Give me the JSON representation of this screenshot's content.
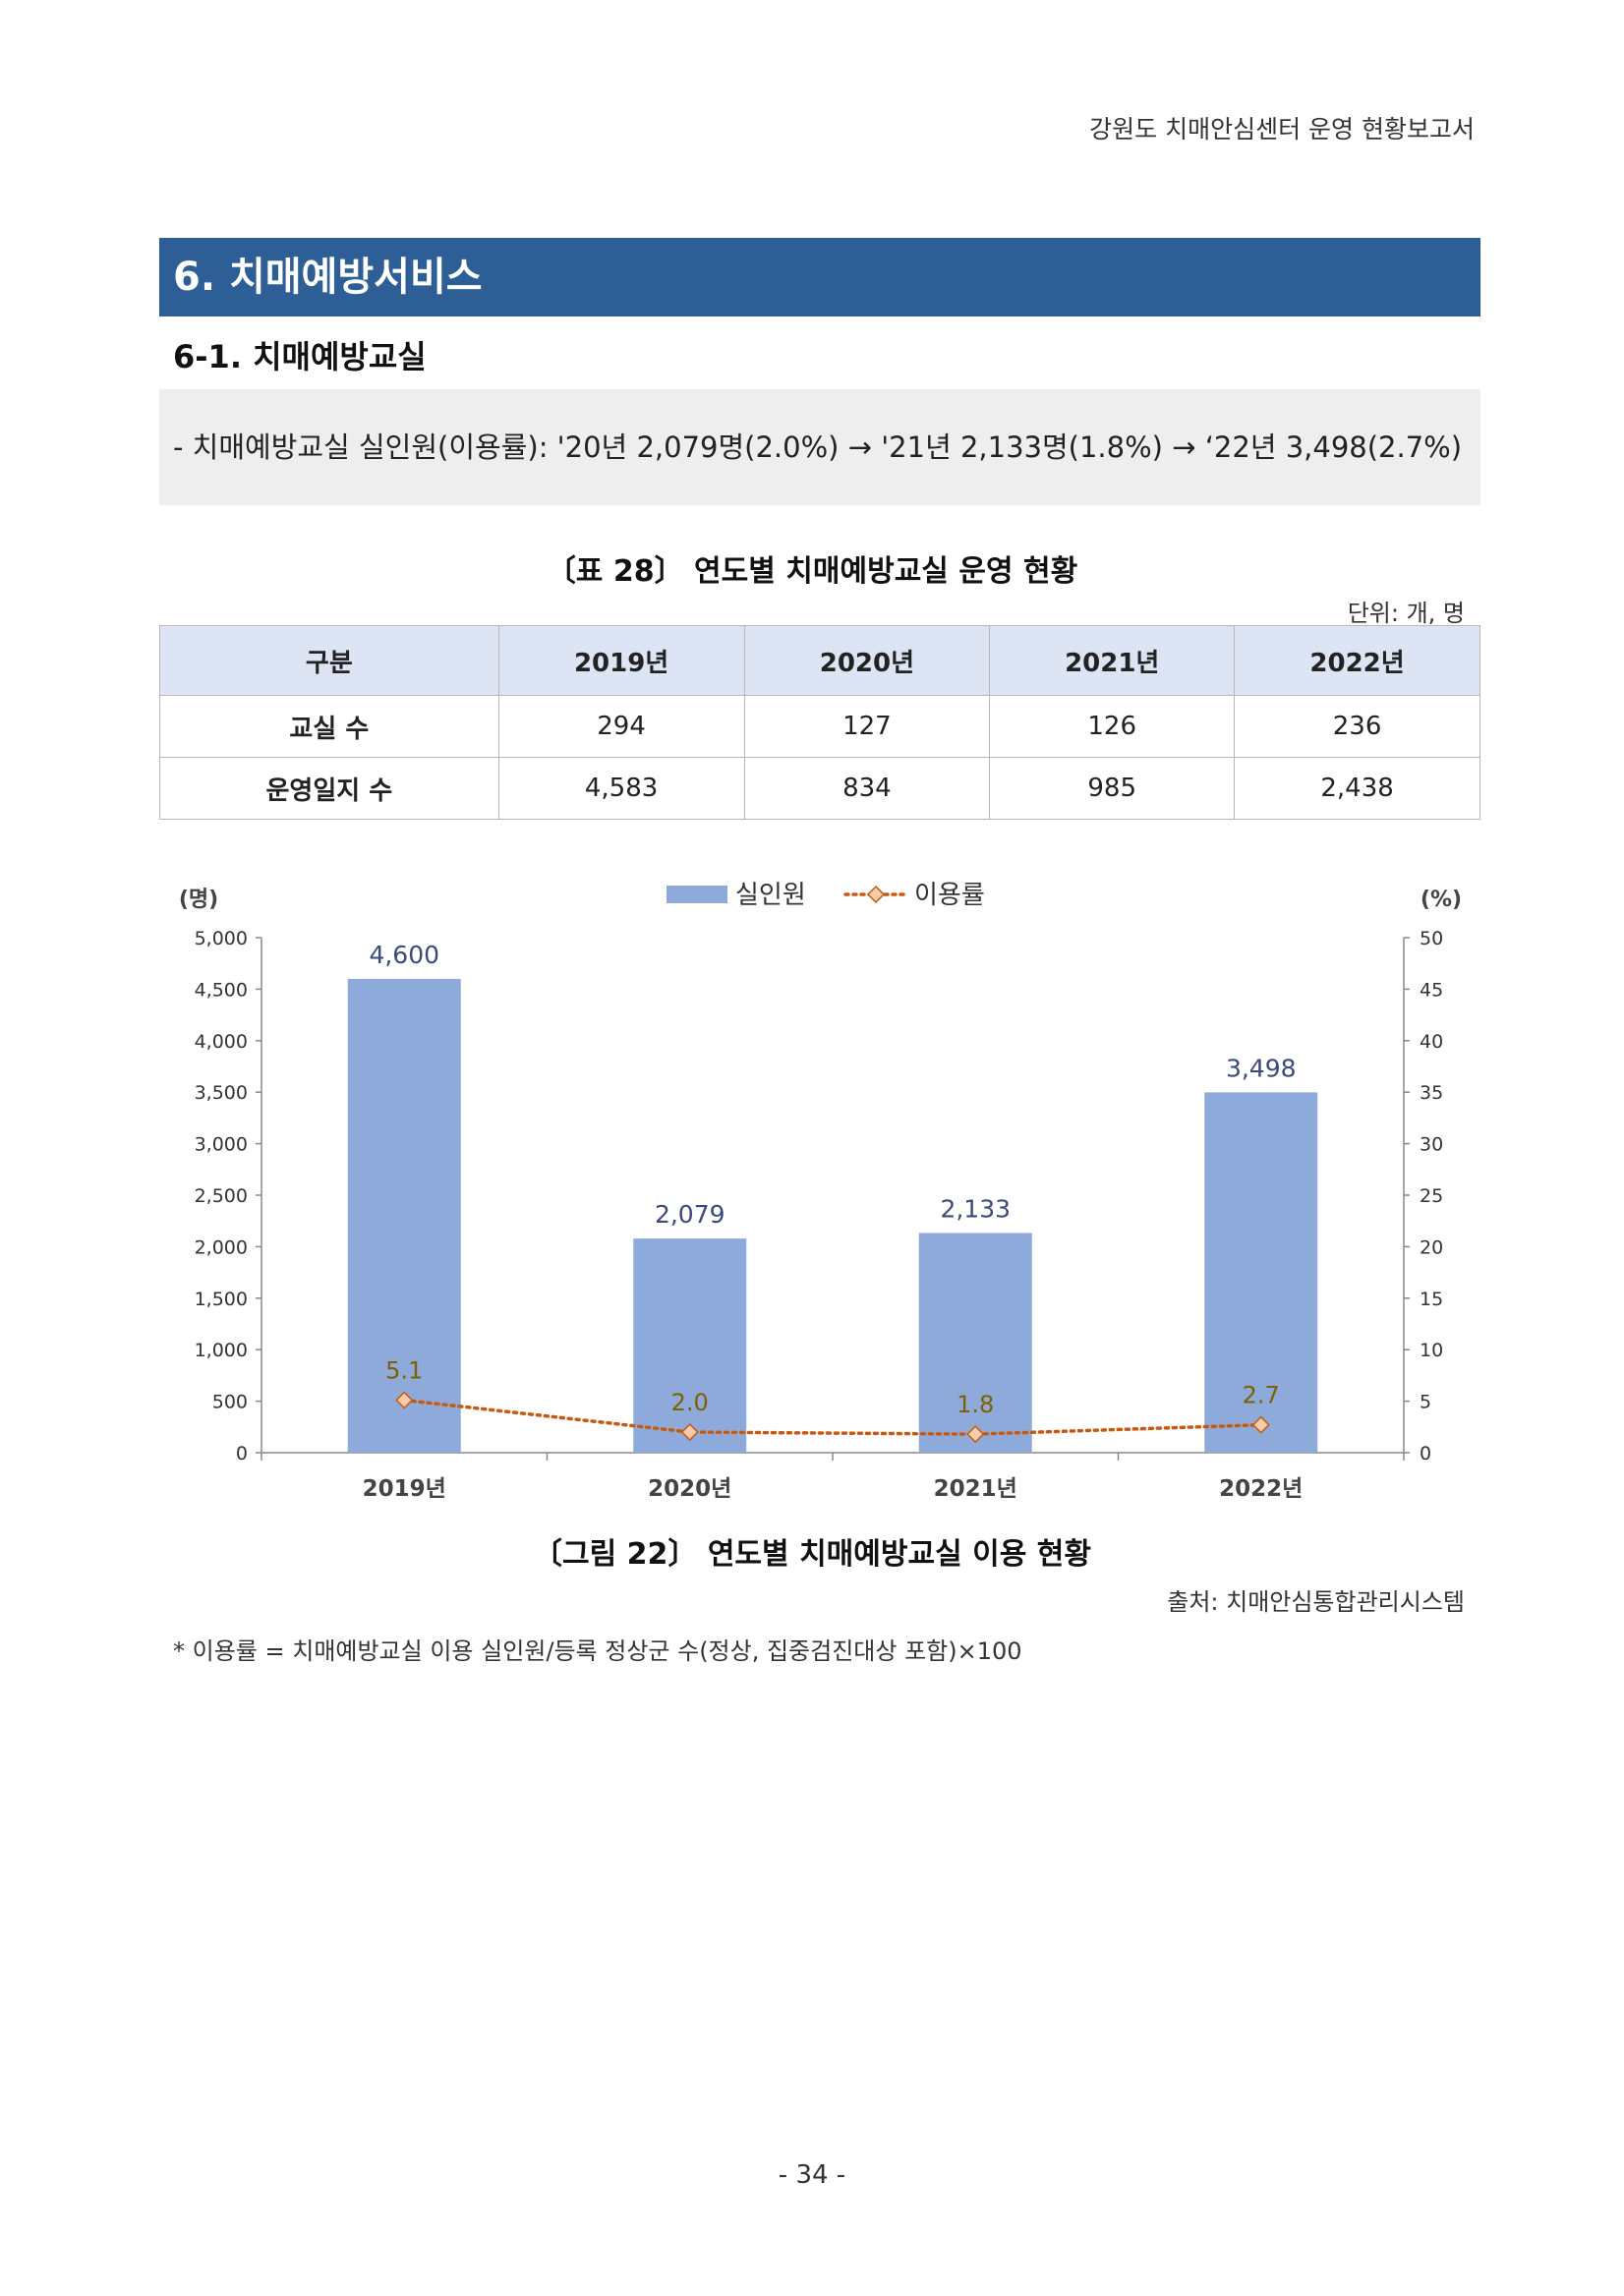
{
  "header": {
    "report_title": "강원도 치매안심센터 운영 현황보고서"
  },
  "section": {
    "title": "6. 치매예방서비스",
    "subtitle": "6-1. 치매예방교실"
  },
  "summary": {
    "text": "- 치매예방교실 실인원(이용률): '20년 2,079명(2.0%) → '21년 2,133명(1.8%) → ‘22년 3,498(2.7%)"
  },
  "table": {
    "caption": "〔표 28〕 연도별 치매예방교실 운영 현황",
    "unit": "단위: 개, 명",
    "headers": [
      "구분",
      "2019년",
      "2020년",
      "2021년",
      "2022년"
    ],
    "rows": [
      {
        "label": "교실 수",
        "values": [
          "294",
          "127",
          "126",
          "236"
        ]
      },
      {
        "label": "운영일지 수",
        "values": [
          "4,583",
          "834",
          "985",
          "2,438"
        ]
      }
    ]
  },
  "chart_data": {
    "type": "bar",
    "categories": [
      "2019년",
      "2020년",
      "2021년",
      "2022년"
    ],
    "series": [
      {
        "name": "실인원",
        "type": "bar",
        "axis": "left",
        "color": "#8eaadb",
        "values": [
          4600,
          2079,
          2133,
          3498
        ],
        "labels": [
          "4,600",
          "2,079",
          "2,133",
          "3,498"
        ]
      },
      {
        "name": "이용률",
        "type": "line",
        "axis": "right",
        "color": "#c55a11",
        "values": [
          5.1,
          2.0,
          1.8,
          2.7
        ],
        "labels": [
          "5.1",
          "2.0",
          "1.8",
          "2.7"
        ]
      }
    ],
    "ylabel_left": "(명)",
    "ylabel_right": "(%)",
    "ylim_left": [
      0,
      5000
    ],
    "ylim_right": [
      0,
      50
    ],
    "yticks_left": [
      "0",
      "500",
      "1,000",
      "1,500",
      "2,000",
      "2,500",
      "3,000",
      "3,500",
      "4,000",
      "4,500",
      "5,000"
    ],
    "yticks_right": [
      "0",
      "5",
      "10",
      "15",
      "20",
      "25",
      "30",
      "35",
      "40",
      "45",
      "50"
    ],
    "legend": "top-center",
    "grid": false
  },
  "figure": {
    "caption": "〔그림 22〕 연도별 치매예방교실 이용 현황",
    "source": "출처: 치매안심통합관리시스템"
  },
  "footnote": "* 이용률 = 치매예방교실 이용 실인원/등록 정상군 수(정상, 집중검진대상 포함)×100",
  "page_number": "- 34 -"
}
